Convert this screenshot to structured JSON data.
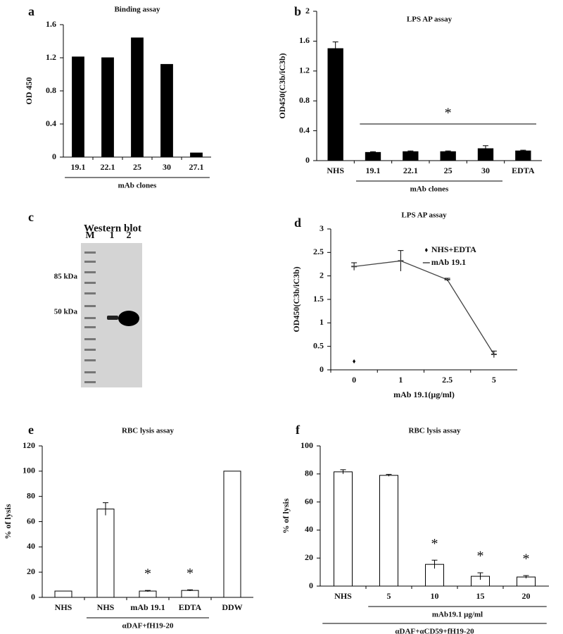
{
  "chart_data": [
    {
      "type": "bar",
      "letter": "a",
      "title": "Binding assay",
      "ylabel": "OD 450",
      "categories": [
        "19.1",
        "22.1",
        "25",
        "30",
        "27.1"
      ],
      "values": [
        1.21,
        1.2,
        1.44,
        1.12,
        0.05
      ],
      "color": "#000000",
      "ylim": [
        0,
        1.6
      ],
      "yticks": [
        0,
        0.4,
        0.8,
        1.2,
        1.6
      ],
      "groups": [
        {
          "label": "mAb clones",
          "from": 0,
          "to": 4
        }
      ]
    },
    {
      "type": "bar",
      "letter": "b",
      "title": "LPS AP assay",
      "ylabel": "OD450(C3b/iC3b)",
      "categories": [
        "NHS",
        "19.1",
        "22.1",
        "25",
        "30",
        "EDTA"
      ],
      "values": [
        1.5,
        0.11,
        0.12,
        0.12,
        0.16,
        0.13
      ],
      "errors": [
        0.09,
        0.01,
        0.01,
        0.01,
        0.04,
        0.01
      ],
      "color": "#000000",
      "ylim": [
        0,
        2
      ],
      "yticks": [
        0,
        0.4,
        0.8,
        1.2,
        1.6,
        2
      ],
      "significance": {
        "text": "*",
        "from": 1,
        "to": 5
      },
      "groups": [
        {
          "label": "mAb clones",
          "from": 1,
          "to": 4
        }
      ]
    },
    {
      "type": "blot",
      "letter": "c",
      "title": "Western blot",
      "lanes": [
        "M",
        "1",
        "2"
      ],
      "markers": [
        "85 kDa",
        "50 kDa"
      ]
    },
    {
      "type": "line",
      "letter": "d",
      "title": "LPS AP assay",
      "ylabel": "OD450(C3b/iC3b)",
      "xlabel": "mAb 19.1(μg/ml)",
      "categories": [
        "0",
        "1",
        "2.5",
        "5"
      ],
      "ylim": [
        0,
        3
      ],
      "yticks": [
        0,
        0.5,
        1,
        1.5,
        2,
        2.5,
        3
      ],
      "series": [
        {
          "name": "NHS+EDTA",
          "color": "#000000",
          "values": [
            0.18,
            null,
            null,
            null
          ]
        },
        {
          "name": "mAb 19.1",
          "color": "#444444",
          "values": [
            2.2,
            2.32,
            1.92,
            0.33
          ],
          "errors": [
            0.08,
            0.22,
            0.03,
            0.07
          ]
        }
      ]
    },
    {
      "type": "bar",
      "letter": "e",
      "title": "RBC lysis assay",
      "ylabel": "% of lysis",
      "categories": [
        "NHS",
        "NHS",
        "mAb 19.1",
        "EDTA",
        "DDW"
      ],
      "values": [
        5,
        70,
        5,
        5.5,
        100
      ],
      "errors": [
        null,
        5,
        0.5,
        0.5,
        null
      ],
      "marks": [
        null,
        null,
        "*",
        "*",
        null
      ],
      "color": "#ffffff",
      "ylim": [
        0,
        120
      ],
      "yticks": [
        0,
        20,
        40,
        60,
        80,
        100,
        120
      ],
      "groups": [
        {
          "label": "αDAF+fH19-20",
          "from": 1,
          "to": 3
        }
      ]
    },
    {
      "type": "bar",
      "letter": "f",
      "title": "RBC lysis assay",
      "ylabel": "% of lysis",
      "categories": [
        "NHS",
        "5",
        "10",
        "15",
        "20"
      ],
      "values": [
        81.5,
        79,
        15.5,
        7,
        6.5
      ],
      "errors": [
        1.5,
        0.7,
        3,
        2.5,
        1
      ],
      "marks": [
        null,
        null,
        "*",
        "*",
        "*"
      ],
      "color": "#ffffff",
      "ylim": [
        0,
        100
      ],
      "yticks": [
        0,
        20,
        40,
        60,
        80,
        100
      ],
      "groups": [
        {
          "label": "mAb19.1 μg/ml",
          "from": 1,
          "to": 4
        },
        {
          "label": "αDAF+αCD59+fH19-20",
          "from": 0,
          "to": 4
        }
      ]
    }
  ]
}
